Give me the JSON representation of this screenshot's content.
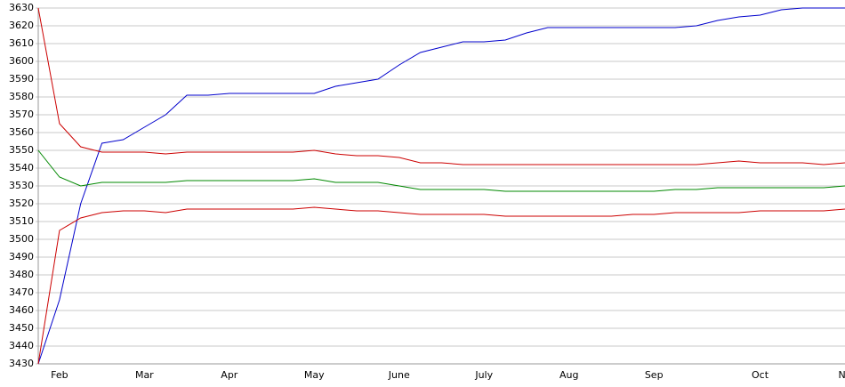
{
  "chart_data": {
    "type": "line",
    "categories": [
      null,
      "Feb",
      null,
      null,
      null,
      "Mar",
      null,
      null,
      null,
      "Apr",
      null,
      null,
      null,
      "May",
      null,
      null,
      null,
      "June",
      null,
      null,
      null,
      "July",
      null,
      null,
      null,
      "Aug",
      null,
      null,
      null,
      "Sep",
      null,
      null,
      null,
      null,
      "Oct",
      null,
      null,
      null,
      "No"
    ],
    "series": [
      {
        "color": "#0000cc",
        "values": [
          3430,
          3466,
          3520,
          3554,
          3556,
          3563,
          3570,
          3581,
          3581,
          3582,
          3582,
          3582,
          3582,
          3582,
          3586,
          3588,
          3590,
          3598,
          3605,
          3608,
          3611,
          3611,
          3612,
          3616,
          3619,
          3619,
          3619,
          3619,
          3619,
          3619,
          3619,
          3620,
          3623,
          3625,
          3626,
          3629,
          3630,
          3630,
          3630
        ]
      },
      {
        "color": "#cc0000",
        "values": [
          3630,
          3565,
          3552,
          3549,
          3549,
          3549,
          3548,
          3549,
          3549,
          3549,
          3549,
          3549,
          3549,
          3550,
          3548,
          3547,
          3547,
          3546,
          3543,
          3543,
          3542,
          3542,
          3542,
          3542,
          3542,
          3542,
          3542,
          3542,
          3542,
          3542,
          3542,
          3542,
          3543,
          3544,
          3543,
          3543,
          3543,
          3542,
          3543
        ]
      },
      {
        "color": "#008800",
        "values": [
          3550,
          3535,
          3530,
          3532,
          3532,
          3532,
          3532,
          3533,
          3533,
          3533,
          3533,
          3533,
          3533,
          3534,
          3532,
          3532,
          3532,
          3530,
          3528,
          3528,
          3528,
          3528,
          3527,
          3527,
          3527,
          3527,
          3527,
          3527,
          3527,
          3527,
          3528,
          3528,
          3529,
          3529,
          3529,
          3529,
          3529,
          3529,
          3530
        ]
      },
      {
        "color": "#cc0000",
        "values": [
          3430,
          3505,
          3512,
          3515,
          3516,
          3516,
          3515,
          3517,
          3517,
          3517,
          3517,
          3517,
          3517,
          3518,
          3517,
          3516,
          3516,
          3515,
          3514,
          3514,
          3514,
          3514,
          3513,
          3513,
          3513,
          3513,
          3513,
          3513,
          3514,
          3514,
          3515,
          3515,
          3515,
          3515,
          3516,
          3516,
          3516,
          3516,
          3517
        ]
      }
    ],
    "ylim": [
      3430,
      3630
    ],
    "yticks": [
      3430,
      3440,
      3450,
      3460,
      3470,
      3480,
      3490,
      3500,
      3510,
      3520,
      3530,
      3540,
      3550,
      3560,
      3570,
      3580,
      3590,
      3600,
      3610,
      3620,
      3630
    ],
    "grid": true
  }
}
